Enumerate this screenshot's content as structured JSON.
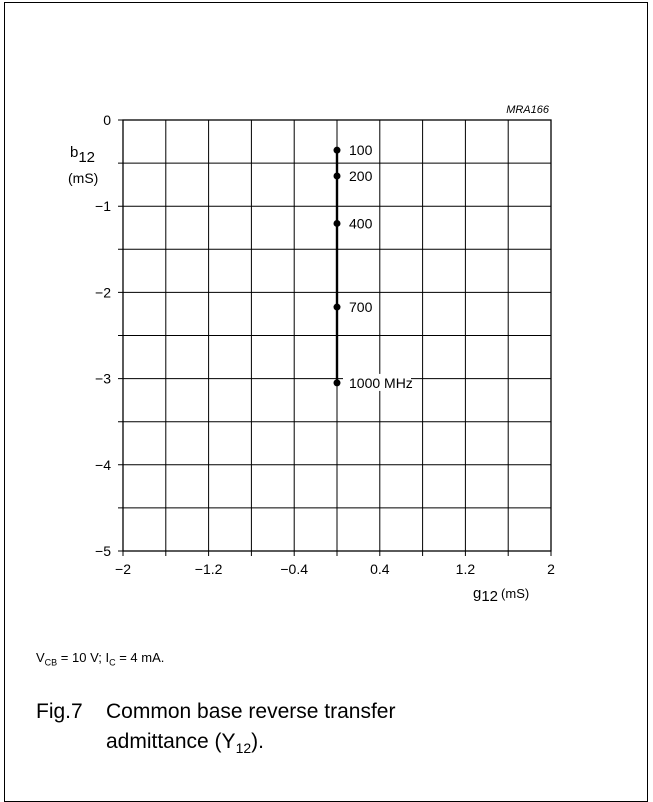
{
  "chart_data": {
    "type": "line",
    "code": "MRA166",
    "xlabel": {
      "symbol": "g",
      "sub": "12",
      "unit": "(mS)"
    },
    "ylabel": {
      "symbol": "b",
      "sub": "12",
      "unit": "(mS)"
    },
    "xlim": [
      -2,
      2
    ],
    "ylim": [
      -5,
      0
    ],
    "xticks": [
      -2,
      -1.2,
      -0.4,
      0.4,
      1.2,
      2
    ],
    "xtick_labels": [
      "−2",
      "−1.2",
      "−0.4",
      "0.4",
      "1.2",
      "2"
    ],
    "yticks": [
      0,
      -1,
      -2,
      -3,
      -4,
      -5
    ],
    "ytick_labels": [
      "0",
      "−1",
      "−2",
      "−3",
      "−4",
      "−5"
    ],
    "x_minor_step": 0.4,
    "y_minor_step": 0.5,
    "grid": true,
    "series": [
      {
        "points": [
          {
            "x": 0.0,
            "y": -0.35,
            "label": "100"
          },
          {
            "x": 0.0,
            "y": -0.65,
            "label": "200"
          },
          {
            "x": 0.0,
            "y": -1.2,
            "label": "400"
          },
          {
            "x": 0.0,
            "y": -2.17,
            "label": "700"
          },
          {
            "x": 0.0,
            "y": -3.05,
            "label": "1000 MHz"
          }
        ]
      }
    ]
  },
  "conditions": {
    "vcb_prefix": "V",
    "vcb_sub": "CB",
    "vcb_value": " = 10 V; I",
    "ic_sub": "C",
    "ic_value": " = 4 mA."
  },
  "caption": {
    "fig": "Fig.7",
    "title_main": "Common base reverse transfer admittance (Y",
    "title_sub": "12",
    "title_end": ")."
  }
}
